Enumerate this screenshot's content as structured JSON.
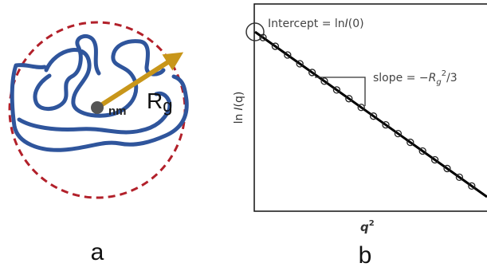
{
  "panel_a": {
    "center_label": "nm",
    "radius_label": {
      "main": "R",
      "sub": "g"
    },
    "caption": "a"
  },
  "panel_b": {
    "intercept_label": [
      "Intercept = ln",
      "I",
      "(0)"
    ],
    "slope_label": [
      "slope = −",
      "R",
      "g",
      "2",
      "/3"
    ],
    "y_axis_label": [
      "ln",
      "I",
      "(q)"
    ],
    "x_axis_label": [
      "q",
      "2"
    ],
    "caption": "b"
  }
}
